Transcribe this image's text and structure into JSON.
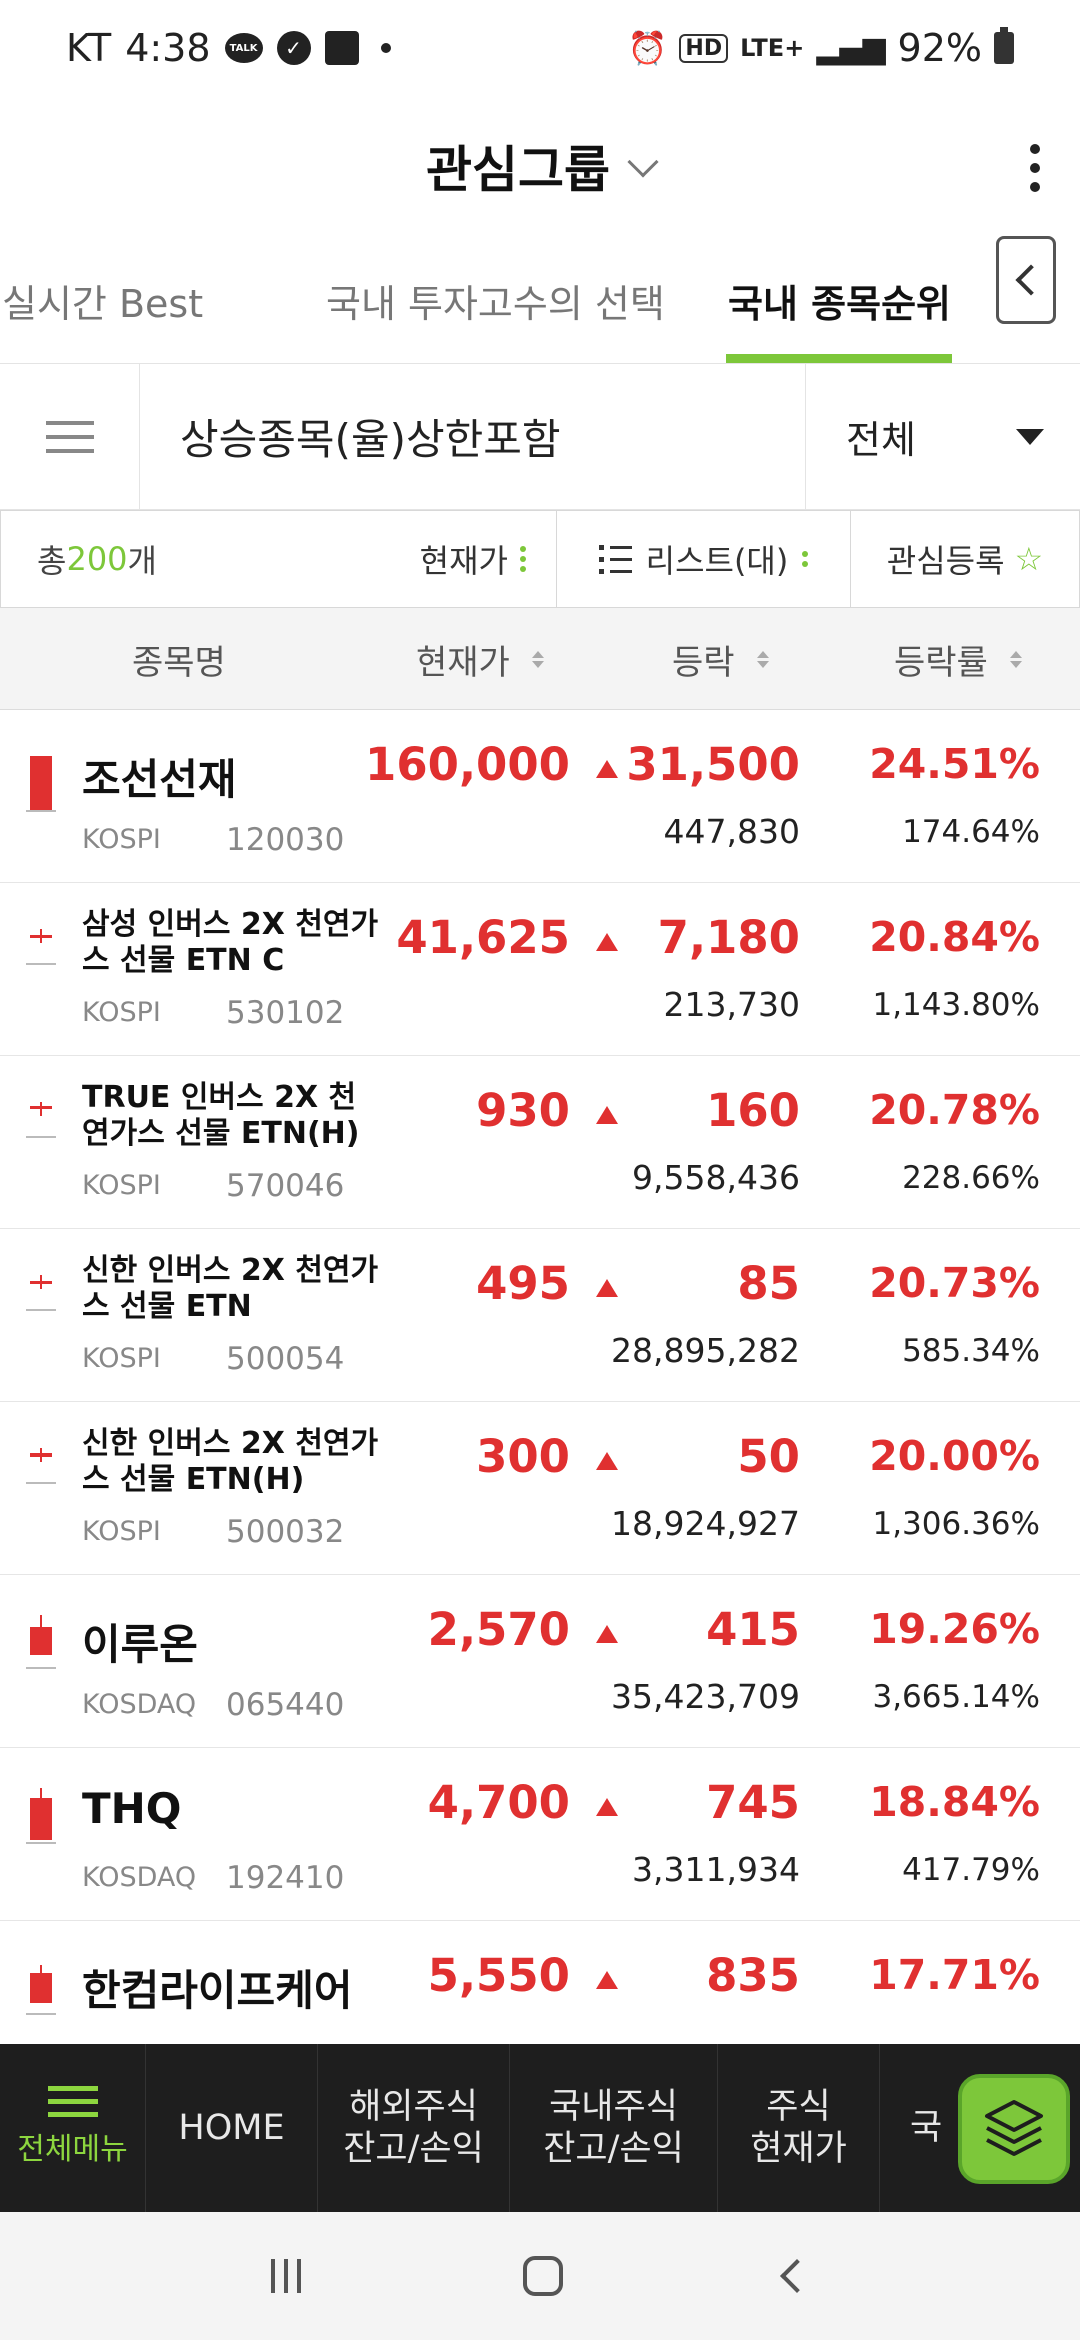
{
  "status_bar": {
    "carrier": "KT",
    "time": "4:38",
    "talk_badge": "TALK",
    "hd_label": "HD",
    "network": "LTE+",
    "battery": "92%"
  },
  "header": {
    "title": "관심그룹"
  },
  "tabs": [
    {
      "label": "종목 실시간 Best"
    },
    {
      "label": "국내 투자고수의 선택"
    },
    {
      "label": "국내 종목순위",
      "active": true
    }
  ],
  "filter": {
    "label": "상승종목(율)상한포함",
    "select_value": "전체"
  },
  "toolbar": {
    "count_prefix": "총",
    "count": "200",
    "count_suffix": "개",
    "sort_label": "현재가",
    "view_label": "리스트(대)",
    "favorite_label": "관심등록"
  },
  "columns": {
    "name": "종목명",
    "price": "현재가",
    "change": "등락",
    "rate": "등락률"
  },
  "rows": [
    {
      "name": "조선선재",
      "market": "KOSPI",
      "code": "120030",
      "price": "160,000",
      "change": "31,500",
      "volume": "447,830",
      "rate": "24.51%",
      "turnover": "174.64%"
    },
    {
      "name": "삼성 인버스 2X 천연가스 선물 ETN C",
      "market": "KOSPI",
      "code": "530102",
      "price": "41,625",
      "change": "7,180",
      "volume": "213,730",
      "rate": "20.84%",
      "turnover": "1,143.80%"
    },
    {
      "name": "TRUE 인버스 2X 천연가스 선물 ETN(H)",
      "market": "KOSPI",
      "code": "570046",
      "price": "930",
      "change": "160",
      "volume": "9,558,436",
      "rate": "20.78%",
      "turnover": "228.66%"
    },
    {
      "name": "신한 인버스 2X 천연가스 선물 ETN",
      "market": "KOSPI",
      "code": "500054",
      "price": "495",
      "change": "85",
      "volume": "28,895,282",
      "rate": "20.73%",
      "turnover": "585.34%"
    },
    {
      "name": "신한 인버스 2X 천연가스 선물 ETN(H)",
      "market": "KOSPI",
      "code": "500032",
      "price": "300",
      "change": "50",
      "volume": "18,924,927",
      "rate": "20.00%",
      "turnover": "1,306.36%"
    },
    {
      "name": "이루온",
      "market": "KOSDAQ",
      "code": "065440",
      "price": "2,570",
      "change": "415",
      "volume": "35,423,709",
      "rate": "19.26%",
      "turnover": "3,665.14%"
    },
    {
      "name": "THQ",
      "market": "KOSDAQ",
      "code": "192410",
      "price": "4,700",
      "change": "745",
      "volume": "3,311,934",
      "rate": "18.84%",
      "turnover": "417.79%"
    },
    {
      "name": "한컴라이프케어",
      "market": "",
      "code": "",
      "price": "5,550",
      "change": "835",
      "volume": "",
      "rate": "17.71%",
      "turnover": ""
    }
  ],
  "bottom_nav": {
    "menu": "전체메뉴",
    "home": "HOME",
    "foreign_line1": "해외주식",
    "foreign_line2": "잔고/손익",
    "domestic_line1": "국내주식",
    "domestic_line2": "잔고/손익",
    "quote_line1": "주식",
    "quote_line2": "현재가",
    "cut": "국"
  },
  "colors": {
    "accent_green": "#7dc73a",
    "up_red": "#e03030",
    "bar_dark": "#1e1e1e"
  }
}
